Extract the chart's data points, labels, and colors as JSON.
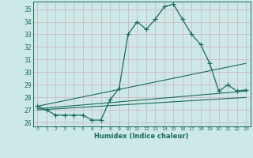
{
  "xlabel": "Humidex (Indice chaleur)",
  "xlim": [
    -0.5,
    23.5
  ],
  "ylim": [
    25.7,
    35.6
  ],
  "yticks": [
    26,
    27,
    28,
    29,
    30,
    31,
    32,
    33,
    34,
    35
  ],
  "xticks": [
    0,
    1,
    2,
    3,
    4,
    5,
    6,
    7,
    8,
    9,
    10,
    11,
    12,
    13,
    14,
    15,
    16,
    17,
    18,
    19,
    20,
    21,
    22,
    23
  ],
  "bg_color": "#cce8e8",
  "grid_color": "#b0d0d0",
  "line_color": "#1a6b5a",
  "main_line": {
    "x": [
      0,
      1,
      2,
      3,
      4,
      5,
      6,
      7,
      8,
      9,
      10,
      11,
      12,
      13,
      14,
      15,
      16,
      17,
      18,
      19,
      20,
      21,
      22,
      23
    ],
    "y": [
      27.3,
      27.0,
      26.6,
      26.6,
      26.6,
      26.6,
      26.2,
      26.2,
      27.8,
      28.7,
      33.0,
      34.0,
      33.4,
      34.2,
      35.2,
      35.4,
      34.2,
      33.0,
      32.2,
      30.7,
      28.5,
      29.0,
      28.5,
      28.6
    ]
  },
  "trend_lines": [
    {
      "x0": 0,
      "y0": 27.3,
      "x1": 23,
      "y1": 30.7
    },
    {
      "x0": 0,
      "y0": 27.1,
      "x1": 23,
      "y1": 28.5
    },
    {
      "x0": 0,
      "y0": 27.0,
      "x1": 23,
      "y1": 28.0
    }
  ]
}
